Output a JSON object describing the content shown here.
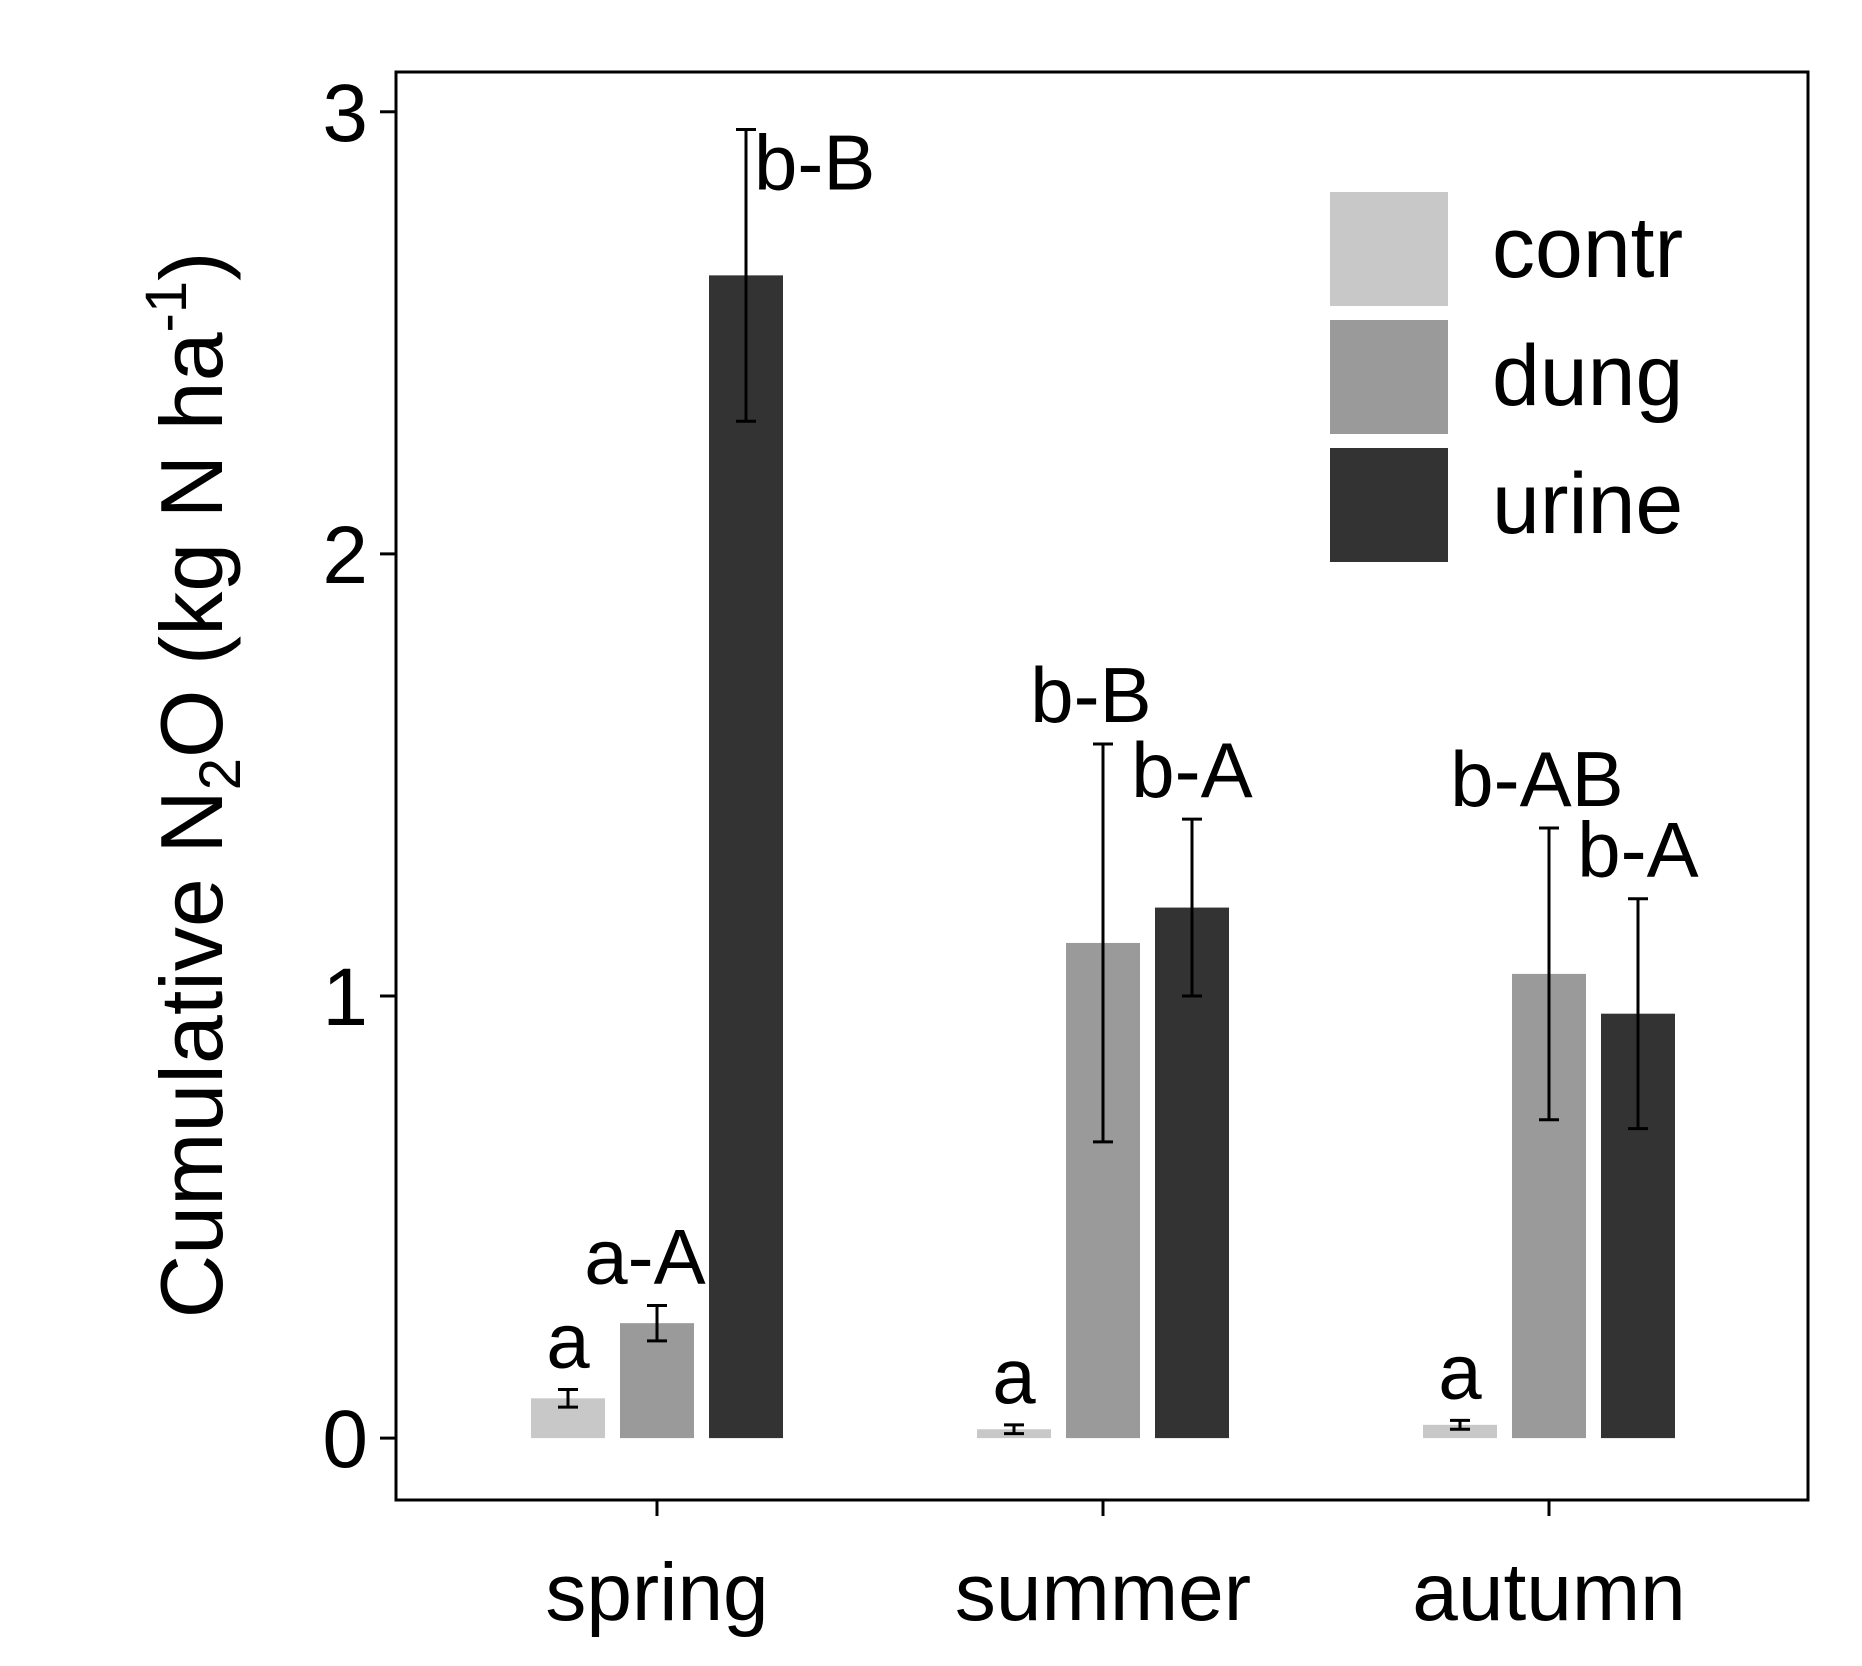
{
  "chart_data": {
    "type": "bar",
    "categories": [
      "spring",
      "summer",
      "autumn"
    ],
    "series": [
      {
        "name": "contr",
        "color": "#c8c8c8",
        "values": [
          0.09,
          0.02,
          0.03
        ],
        "error": [
          0.02,
          0.01,
          0.01
        ],
        "labels": [
          "a",
          "a",
          "a"
        ]
      },
      {
        "name": "dung",
        "color": "#9a9a9a",
        "values": [
          0.26,
          1.12,
          1.05
        ],
        "error": [
          0.04,
          0.45,
          0.33
        ],
        "labels": [
          "a-A",
          "b-B",
          "b-AB"
        ]
      },
      {
        "name": "urine",
        "color": "#333333",
        "values": [
          2.63,
          1.2,
          0.96
        ],
        "error": [
          0.33,
          0.2,
          0.26
        ],
        "labels": [
          "b-B",
          "b-A",
          "b-A"
        ]
      }
    ],
    "ylabel": {
      "main": "Cumulative N",
      "sub": "2",
      "rest": "O (kg N ha",
      "sup": "-1",
      "close": ")"
    },
    "xlabel": "",
    "ylim": [
      -0.14,
      3.09
    ],
    "yticks": [
      0,
      1,
      2,
      3
    ],
    "grid": false,
    "legend": "top-right"
  }
}
